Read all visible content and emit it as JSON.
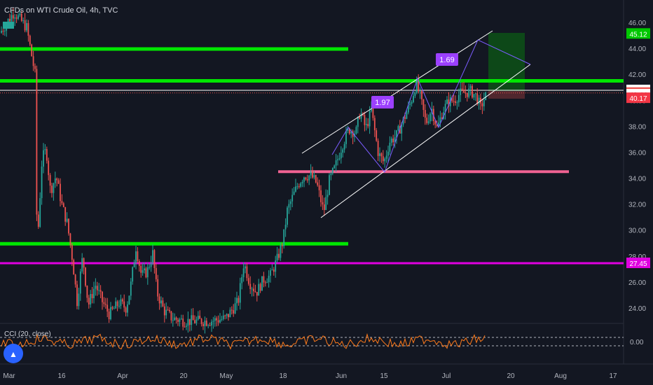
{
  "header": {
    "symbol_title": "CFDs on WTI Crude Oil, 4h, TVC"
  },
  "indicator": {
    "label": "CCI (20, close)",
    "zero_label": "0.00"
  },
  "colors": {
    "background": "#131722",
    "up": "#26a69a",
    "down": "#ef5350",
    "green_line": "#00e600",
    "magenta_line": "#e000e0",
    "pink_zone": "#f06292",
    "channel": "#ffffff",
    "pattern": "#7b5cff",
    "badge": "#9c40ff",
    "cci": "#ff7a1a"
  },
  "chart_data": {
    "type": "candlestick",
    "timeframe": "4h",
    "y_axis_ticks": [
      "46.00",
      "44.00",
      "42.00",
      "40.00",
      "38.00",
      "36.00",
      "34.00",
      "32.00",
      "30.00",
      "28.00",
      "26.00",
      "24.00"
    ],
    "x_axis_ticks": [
      "Mar",
      "16",
      "Apr",
      "20",
      "May",
      "18",
      "Jun",
      "15",
      "Jul",
      "20",
      "Aug",
      "17"
    ],
    "ylim": [
      22.8,
      47.2
    ],
    "price_labels": [
      {
        "value": 45.12,
        "text": "45.12",
        "color": "#00c800"
      },
      {
        "value": 40.77,
        "text": "40.77",
        "color": "#ffffff"
      },
      {
        "value": 40.57,
        "text": "40.57",
        "color": "#ef5350"
      },
      {
        "value": 40.44,
        "text": "40.44",
        "color": "#ffffff"
      },
      {
        "value": 40.17,
        "text": "40.17",
        "color": "#f23645"
      },
      {
        "value": 27.45,
        "text": "27.45",
        "color": "#e000e0"
      }
    ],
    "horizontal_lines": [
      {
        "value": 43.95,
        "from": "Mar",
        "to": "Jun",
        "color": "green"
      },
      {
        "value": 41.5,
        "from": "Mar",
        "to": "Aug",
        "color": "green"
      },
      {
        "value": 28.95,
        "from": "Mar",
        "to": "Jun",
        "color": "green"
      },
      {
        "value": 27.45,
        "from": "Mar",
        "to": "Aug",
        "color": "magenta"
      },
      {
        "value": 34.5,
        "from": "May",
        "to": "Aug",
        "color": "pink"
      }
    ],
    "annotations": [
      "1.97",
      "1.69"
    ],
    "cci_zero": 0.0
  }
}
